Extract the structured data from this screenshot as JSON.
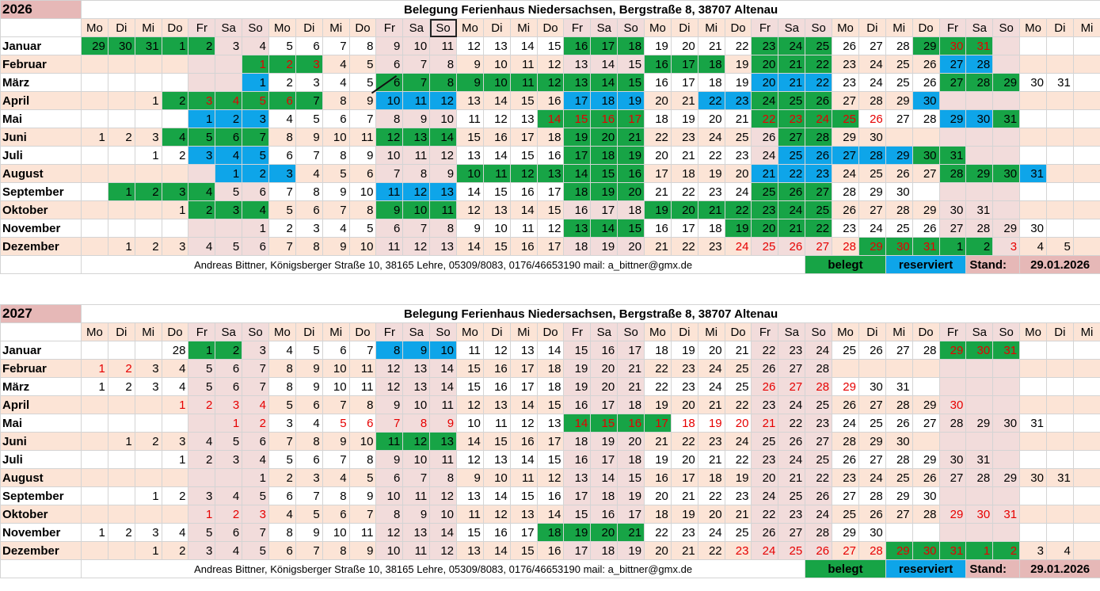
{
  "weekday_labels": [
    "Mo",
    "Di",
    "Mi",
    "Do",
    "Fr",
    "Sa",
    "So"
  ],
  "colors": {
    "belegt": "#17a446",
    "reserviert": "#0ea5e9",
    "weekend": "#f2dcdb",
    "alt_row": "#fce4d6",
    "highlight_text": "#e60000",
    "header": "#e6b8b7"
  },
  "calendars": [
    {
      "year": "2026",
      "title": "Belegung Ferienhaus Niedersachsen, Bergstraße 8, 38707 Altenau",
      "footer": "Andreas Bittner, Königsberger Straße 10, 38165 Lehre, 05309/8083, 0176/46653190  mail: a_bittner@gmx.de",
      "legend_belegt": "belegt",
      "legend_reserviert": "reserviert",
      "stand_label": "Stand:",
      "stand_date": "29.01.2026",
      "months": [
        {
          "name": "Januar",
          "start": 3,
          "days": 31,
          "prev": [
            29,
            30,
            31
          ],
          "green": [
            29,
            30,
            31,
            1,
            2,
            16,
            17,
            18,
            23,
            24,
            25
          ],
          "blue": [],
          "red": [
            30,
            31
          ]
        },
        {
          "name": "Februar",
          "start": 6,
          "days": 28,
          "green": [
            1,
            2,
            3,
            16,
            17,
            18,
            20,
            21,
            22
          ],
          "blue": [
            27,
            28
          ],
          "red": [
            1,
            2,
            3
          ]
        },
        {
          "name": "März",
          "start": 6,
          "days": 31,
          "green": [
            6,
            7,
            8,
            9,
            10,
            11,
            12,
            13,
            14,
            15,
            27,
            28,
            29
          ],
          "blue": [
            1,
            20,
            21,
            22
          ],
          "red": []
        },
        {
          "name": "April",
          "start": 2,
          "days": 30,
          "green": [
            2,
            3,
            4,
            5,
            6,
            7,
            24,
            25,
            26
          ],
          "blue": [
            10,
            11,
            12,
            17,
            18,
            19,
            22,
            23,
            30
          ],
          "red": [
            3,
            4,
            5,
            6
          ]
        },
        {
          "name": "Mai",
          "start": 4,
          "days": 31,
          "green": [
            14,
            15,
            16,
            17,
            22,
            23,
            24,
            25,
            31
          ],
          "blue": [
            1,
            2,
            3,
            29,
            30
          ],
          "red": [
            14,
            15,
            16,
            17,
            22,
            23,
            24,
            25,
            26
          ]
        },
        {
          "name": "Juni",
          "start": 0,
          "days": 30,
          "green": [
            4,
            5,
            6,
            7,
            12,
            13,
            14,
            19,
            20,
            21,
            27,
            28
          ],
          "blue": [],
          "red": []
        },
        {
          "name": "Juli",
          "start": 2,
          "days": 31,
          "green": [
            17,
            18,
            19,
            30,
            31
          ],
          "blue": [
            3,
            4,
            5,
            25,
            26,
            27,
            28,
            29
          ],
          "red": []
        },
        {
          "name": "August",
          "start": 5,
          "days": 31,
          "green": [
            10,
            11,
            12,
            13,
            14,
            15,
            16,
            28,
            29,
            30
          ],
          "blue": [
            1,
            2,
            3,
            21,
            22,
            23,
            31
          ],
          "red": []
        },
        {
          "name": "September",
          "start": 1,
          "days": 30,
          "green": [
            1,
            2,
            3,
            4,
            18,
            19,
            20,
            25,
            26,
            27
          ],
          "blue": [
            11,
            12,
            13
          ],
          "red": []
        },
        {
          "name": "Oktober",
          "start": 3,
          "days": 31,
          "green": [
            2,
            3,
            4,
            9,
            10,
            11,
            19,
            20,
            21,
            22,
            23,
            24,
            25
          ],
          "blue": [],
          "red": []
        },
        {
          "name": "November",
          "start": 6,
          "days": 30,
          "green": [
            13,
            14,
            15,
            19,
            20,
            21,
            22
          ],
          "blue": [],
          "red": []
        },
        {
          "name": "Dezember",
          "start": 1,
          "days": 31,
          "next": [
            1,
            2,
            3,
            4,
            5
          ],
          "green": [
            29,
            30,
            31,
            1,
            2
          ],
          "blue": [],
          "red": [
            24,
            25,
            26,
            27,
            28,
            29,
            30,
            31,
            3
          ]
        }
      ]
    },
    {
      "year": "2027",
      "title": "Belegung Ferienhaus Niedersachsen, Bergstraße 8, 38707 Altenau",
      "footer": "Andreas Bittner, Königsberger Straße 10, 38165 Lehre, 05309/8083, 0176/46653190  mail: a_bittner@gmx.de",
      "legend_belegt": "belegt",
      "legend_reserviert": "reserviert",
      "stand_label": "Stand:",
      "stand_date": "29.01.2026",
      "months": [
        {
          "name": "Januar",
          "start": 4,
          "days": 31,
          "prev": [
            28
          ],
          "green": [
            29,
            30,
            31,
            1,
            2
          ],
          "blue": [
            8,
            9,
            10
          ],
          "red": [
            29,
            30,
            31
          ]
        },
        {
          "name": "Februar",
          "start": 0,
          "days": 28,
          "green": [],
          "blue": [],
          "red": [
            1,
            2
          ]
        },
        {
          "name": "März",
          "start": 0,
          "days": 31,
          "green": [],
          "blue": [],
          "red": [
            26,
            27,
            28,
            29
          ]
        },
        {
          "name": "April",
          "start": 3,
          "days": 30,
          "green": [],
          "blue": [],
          "red": [
            1,
            2,
            3,
            4,
            30
          ]
        },
        {
          "name": "Mai",
          "start": 5,
          "days": 31,
          "green": [
            14,
            15,
            16,
            17
          ],
          "blue": [],
          "red": [
            1,
            2,
            5,
            6,
            7,
            8,
            9,
            14,
            15,
            16,
            17,
            18,
            19,
            20,
            21
          ]
        },
        {
          "name": "Juni",
          "start": 1,
          "days": 30,
          "green": [
            11,
            12,
            13
          ],
          "blue": [],
          "red": []
        },
        {
          "name": "Juli",
          "start": 3,
          "days": 31,
          "green": [],
          "blue": [],
          "red": []
        },
        {
          "name": "August",
          "start": 6,
          "days": 31,
          "green": [],
          "blue": [],
          "red": []
        },
        {
          "name": "September",
          "start": 2,
          "days": 30,
          "green": [],
          "blue": [],
          "red": []
        },
        {
          "name": "Oktober",
          "start": 4,
          "days": 31,
          "green": [],
          "blue": [],
          "red": [
            1,
            2,
            3,
            29,
            30,
            31
          ]
        },
        {
          "name": "November",
          "start": 0,
          "days": 30,
          "green": [
            18,
            19,
            20,
            21
          ],
          "blue": [],
          "red": []
        },
        {
          "name": "Dezember",
          "start": 2,
          "days": 31,
          "next": [
            1,
            2,
            3,
            4
          ],
          "green": [
            29,
            30,
            31,
            1,
            2
          ],
          "blue": [],
          "red": [
            23,
            24,
            25,
            26,
            27,
            28,
            29,
            30,
            31,
            1,
            2
          ]
        }
      ]
    }
  ]
}
